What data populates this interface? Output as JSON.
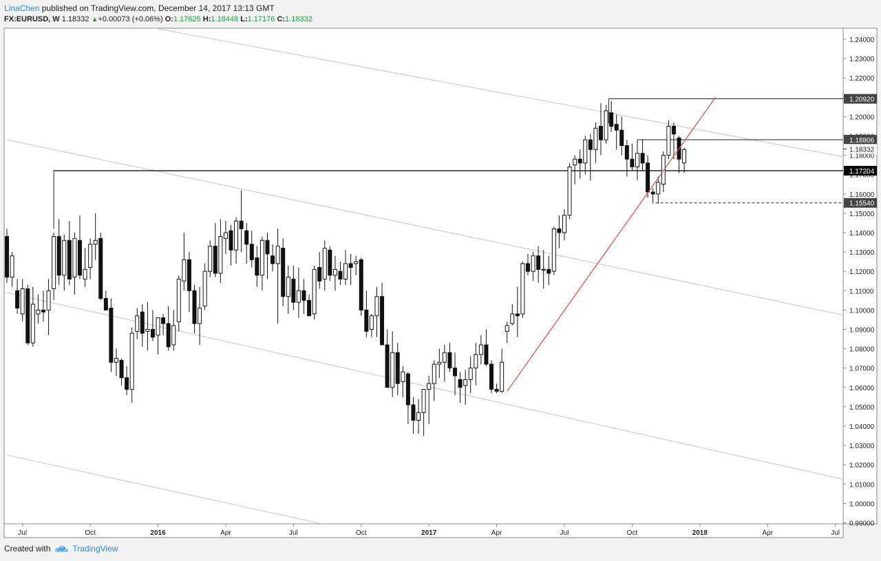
{
  "header": {
    "author": "LinaChen",
    "published": "published on TradingView.com, December 14, 2017 13:13 GMT",
    "symbol": "FX:EURUSD, W",
    "last": "1.18332",
    "change": "+0.00073 (+0.06%)",
    "o_label": "O:",
    "o_value": "1.17625",
    "h_label": "H:",
    "h_value": "1.18448",
    "l_label": "L:",
    "l_value": "1.17176",
    "c_label": "C:",
    "c_value": "1.18332"
  },
  "footer": {
    "created_with": "Created with",
    "brand": "TradingView"
  },
  "colors": {
    "up": "#ffffff",
    "down": "#111111",
    "trend": "#e8453c",
    "channel": "#d0d0d0",
    "level": "#222222"
  },
  "chart_data": {
    "type": "candlestick",
    "symbol": "FX:EURUSD",
    "timeframe": "W",
    "ylim": [
      0.99,
      1.245
    ],
    "y_ticks": [
      "1.24000",
      "1.23000",
      "1.22000",
      "1.21000",
      "1.20000",
      "1.19000",
      "1.18000",
      "1.17000",
      "1.16000",
      "1.15000",
      "1.14000",
      "1.13000",
      "1.12000",
      "1.11000",
      "1.10000",
      "1.09000",
      "1.08000",
      "1.07000",
      "1.06000",
      "1.05000",
      "1.04000",
      "1.03000",
      "1.02000",
      "1.01000",
      "1.00000",
      "0.99000"
    ],
    "x_ticks": [
      {
        "label": "Jul",
        "week": 3
      },
      {
        "label": "Oct",
        "week": 16
      },
      {
        "label": "2016",
        "week": 29
      },
      {
        "label": "Apr",
        "week": 42
      },
      {
        "label": "Jul",
        "week": 55
      },
      {
        "label": "Oct",
        "week": 68
      },
      {
        "label": "2017",
        "week": 81
      },
      {
        "label": "Apr",
        "week": 94
      },
      {
        "label": "Jul",
        "week": 107
      },
      {
        "label": "Oct",
        "week": 120
      },
      {
        "label": "2018",
        "week": 133
      },
      {
        "label": "Apr",
        "week": 146
      },
      {
        "label": "Jul",
        "week": 159
      }
    ],
    "candles": [
      [
        1.138,
        1.142,
        1.114,
        1.117
      ],
      [
        1.117,
        1.13,
        1.112,
        1.128
      ],
      [
        1.11,
        1.116,
        1.098,
        1.101
      ],
      [
        1.098,
        1.116,
        1.094,
        1.111
      ],
      [
        1.111,
        1.113,
        1.082,
        1.083
      ],
      [
        1.083,
        1.112,
        1.081,
        1.103
      ],
      [
        1.098,
        1.108,
        1.093,
        1.1
      ],
      [
        1.1,
        1.11,
        1.094,
        1.099
      ],
      [
        1.1,
        1.116,
        1.087,
        1.11
      ],
      [
        1.111,
        1.14,
        1.105,
        1.138
      ],
      [
        1.138,
        1.147,
        1.113,
        1.118
      ],
      [
        1.118,
        1.139,
        1.11,
        1.136
      ],
      [
        1.136,
        1.146,
        1.113,
        1.116
      ],
      [
        1.117,
        1.14,
        1.108,
        1.137
      ],
      [
        1.136,
        1.149,
        1.116,
        1.118
      ],
      [
        1.116,
        1.132,
        1.112,
        1.121
      ],
      [
        1.122,
        1.137,
        1.116,
        1.134
      ],
      [
        1.134,
        1.15,
        1.126,
        1.136
      ],
      [
        1.137,
        1.14,
        1.105,
        1.106
      ],
      [
        1.106,
        1.11,
        1.1,
        1.1
      ],
      [
        1.101,
        1.106,
        1.068,
        1.073
      ],
      [
        1.073,
        1.08,
        1.066,
        1.075
      ],
      [
        1.074,
        1.075,
        1.061,
        1.065
      ],
      [
        1.065,
        1.071,
        1.056,
        1.059
      ],
      [
        1.059,
        1.091,
        1.052,
        1.088
      ],
      [
        1.089,
        1.101,
        1.085,
        1.097
      ],
      [
        1.099,
        1.103,
        1.081,
        1.088
      ],
      [
        1.089,
        1.104,
        1.079,
        1.09
      ],
      [
        1.09,
        1.1,
        1.084,
        1.086
      ],
      [
        1.087,
        1.096,
        1.077,
        1.096
      ],
      [
        1.096,
        1.098,
        1.087,
        1.093
      ],
      [
        1.093,
        1.102,
        1.079,
        1.081
      ],
      [
        1.082,
        1.1,
        1.079,
        1.092
      ],
      [
        1.094,
        1.118,
        1.089,
        1.116
      ],
      [
        1.115,
        1.14,
        1.11,
        1.126
      ],
      [
        1.126,
        1.13,
        1.099,
        1.11
      ],
      [
        1.11,
        1.113,
        1.088,
        1.093
      ],
      [
        1.093,
        1.112,
        1.082,
        1.101
      ],
      [
        1.102,
        1.124,
        1.1,
        1.12
      ],
      [
        1.12,
        1.136,
        1.117,
        1.133
      ],
      [
        1.133,
        1.145,
        1.117,
        1.119
      ],
      [
        1.119,
        1.147,
        1.114,
        1.138
      ],
      [
        1.137,
        1.146,
        1.129,
        1.14
      ],
      [
        1.141,
        1.144,
        1.123,
        1.131
      ],
      [
        1.131,
        1.148,
        1.124,
        1.146
      ],
      [
        1.146,
        1.162,
        1.13,
        1.142
      ],
      [
        1.141,
        1.145,
        1.124,
        1.134
      ],
      [
        1.134,
        1.141,
        1.122,
        1.126
      ],
      [
        1.127,
        1.133,
        1.112,
        1.118
      ],
      [
        1.118,
        1.138,
        1.11,
        1.136
      ],
      [
        1.136,
        1.14,
        1.116,
        1.129
      ],
      [
        1.128,
        1.134,
        1.12,
        1.124
      ],
      [
        1.124,
        1.142,
        1.093,
        1.133
      ],
      [
        1.132,
        1.137,
        1.102,
        1.107
      ],
      [
        1.107,
        1.123,
        1.098,
        1.117
      ],
      [
        1.116,
        1.123,
        1.1,
        1.104
      ],
      [
        1.104,
        1.122,
        1.096,
        1.11
      ],
      [
        1.11,
        1.116,
        1.098,
        1.105
      ],
      [
        1.105,
        1.108,
        1.097,
        1.097
      ],
      [
        1.098,
        1.123,
        1.095,
        1.121
      ],
      [
        1.122,
        1.13,
        1.111,
        1.115
      ],
      [
        1.116,
        1.136,
        1.11,
        1.132
      ],
      [
        1.131,
        1.133,
        1.115,
        1.118
      ],
      [
        1.118,
        1.128,
        1.11,
        1.121
      ],
      [
        1.12,
        1.125,
        1.113,
        1.116
      ],
      [
        1.116,
        1.131,
        1.113,
        1.124
      ],
      [
        1.124,
        1.129,
        1.113,
        1.122
      ],
      [
        1.124,
        1.128,
        1.118,
        1.125
      ],
      [
        1.126,
        1.127,
        1.097,
        1.1
      ],
      [
        1.1,
        1.11,
        1.086,
        1.089
      ],
      [
        1.09,
        1.098,
        1.086,
        1.097
      ],
      [
        1.097,
        1.112,
        1.086,
        1.107
      ],
      [
        1.107,
        1.114,
        1.082,
        1.082
      ],
      [
        1.082,
        1.09,
        1.06,
        1.06
      ],
      [
        1.06,
        1.089,
        1.055,
        1.078
      ],
      [
        1.078,
        1.083,
        1.056,
        1.062
      ],
      [
        1.063,
        1.071,
        1.055,
        1.068
      ],
      [
        1.067,
        1.068,
        1.041,
        1.051
      ],
      [
        1.051,
        1.055,
        1.036,
        1.043
      ],
      [
        1.043,
        1.054,
        1.036,
        1.047
      ],
      [
        1.047,
        1.059,
        1.035,
        1.059
      ],
      [
        1.059,
        1.066,
        1.041,
        1.062
      ],
      [
        1.062,
        1.074,
        1.053,
        1.072
      ],
      [
        1.072,
        1.08,
        1.065,
        1.073
      ],
      [
        1.073,
        1.082,
        1.063,
        1.078
      ],
      [
        1.078,
        1.083,
        1.068,
        1.07
      ],
      [
        1.07,
        1.078,
        1.056,
        1.066
      ],
      [
        1.064,
        1.068,
        1.052,
        1.06
      ],
      [
        1.061,
        1.069,
        1.051,
        1.064
      ],
      [
        1.064,
        1.076,
        1.057,
        1.07
      ],
      [
        1.07,
        1.083,
        1.061,
        1.077
      ],
      [
        1.077,
        1.087,
        1.072,
        1.082
      ],
      [
        1.082,
        1.09,
        1.071,
        1.072
      ],
      [
        1.072,
        1.074,
        1.057,
        1.059
      ],
      [
        1.059,
        1.062,
        1.057,
        1.058
      ],
      [
        1.058,
        1.08,
        1.057,
        1.073
      ],
      [
        1.089,
        1.094,
        1.083,
        1.092
      ],
      [
        1.093,
        1.103,
        1.092,
        1.098
      ],
      [
        1.098,
        1.112,
        1.086,
        1.097
      ],
      [
        1.098,
        1.125,
        1.096,
        1.124
      ],
      [
        1.124,
        1.129,
        1.118,
        1.12
      ],
      [
        1.12,
        1.13,
        1.115,
        1.128
      ],
      [
        1.128,
        1.133,
        1.114,
        1.121
      ],
      [
        1.121,
        1.131,
        1.111,
        1.121
      ],
      [
        1.121,
        1.128,
        1.113,
        1.119
      ],
      [
        1.12,
        1.143,
        1.118,
        1.142
      ],
      [
        1.142,
        1.149,
        1.132,
        1.14
      ],
      [
        1.14,
        1.152,
        1.136,
        1.149
      ],
      [
        1.149,
        1.176,
        1.147,
        1.174
      ],
      [
        1.175,
        1.18,
        1.165,
        1.178
      ],
      [
        1.178,
        1.183,
        1.168,
        1.176
      ],
      [
        1.176,
        1.19,
        1.17,
        1.188
      ],
      [
        1.188,
        1.191,
        1.167,
        1.183
      ],
      [
        1.183,
        1.197,
        1.176,
        1.194
      ],
      [
        1.195,
        1.207,
        1.18,
        1.188
      ],
      [
        1.188,
        1.206,
        1.186,
        1.203
      ],
      [
        1.202,
        1.208,
        1.192,
        1.195
      ],
      [
        1.196,
        1.201,
        1.183,
        1.193
      ],
      [
        1.193,
        1.2,
        1.18,
        1.185
      ],
      [
        1.185,
        1.188,
        1.169,
        1.178
      ],
      [
        1.178,
        1.186,
        1.172,
        1.174
      ],
      [
        1.174,
        1.188,
        1.167,
        1.181
      ],
      [
        1.181,
        1.188,
        1.172,
        1.176
      ],
      [
        1.176,
        1.18,
        1.158,
        1.161
      ],
      [
        1.161,
        1.163,
        1.155,
        1.16
      ],
      [
        1.16,
        1.169,
        1.155,
        1.166
      ],
      [
        1.165,
        1.182,
        1.161,
        1.18
      ],
      [
        1.18,
        1.198,
        1.178,
        1.195
      ],
      [
        1.195,
        1.197,
        1.178,
        1.191
      ],
      [
        1.189,
        1.19,
        1.171,
        1.178
      ],
      [
        1.176,
        1.184,
        1.171,
        1.183
      ]
    ],
    "price_levels": [
      {
        "value": 1.2092,
        "label": "1.20920",
        "style": "solid"
      },
      {
        "value": 1.18806,
        "label": "1.18806",
        "style": "solid"
      },
      {
        "value": 1.17204,
        "label": "1.17204",
        "style": "solid-bold"
      },
      {
        "value": 1.1554,
        "label": "1.15540",
        "style": "dashed"
      }
    ],
    "last_price": {
      "value": 1.18332,
      "label": "1.18332"
    },
    "trendline": {
      "color": "#e8453c",
      "from": [
        96,
        1.058
      ],
      "to": [
        136,
        1.21
      ]
    },
    "channel_lines": [
      {
        "from": [
          0,
          1.26
        ],
        "to": [
          163,
          1.178
        ]
      },
      {
        "from": [
          0,
          1.188
        ],
        "to": [
          163,
          1.096
        ]
      },
      {
        "from": [
          0,
          1.109
        ],
        "to": [
          163,
          1.011
        ]
      },
      {
        "from": [
          0,
          1.025
        ],
        "to": [
          63,
          0.988
        ]
      }
    ],
    "grid": false
  }
}
